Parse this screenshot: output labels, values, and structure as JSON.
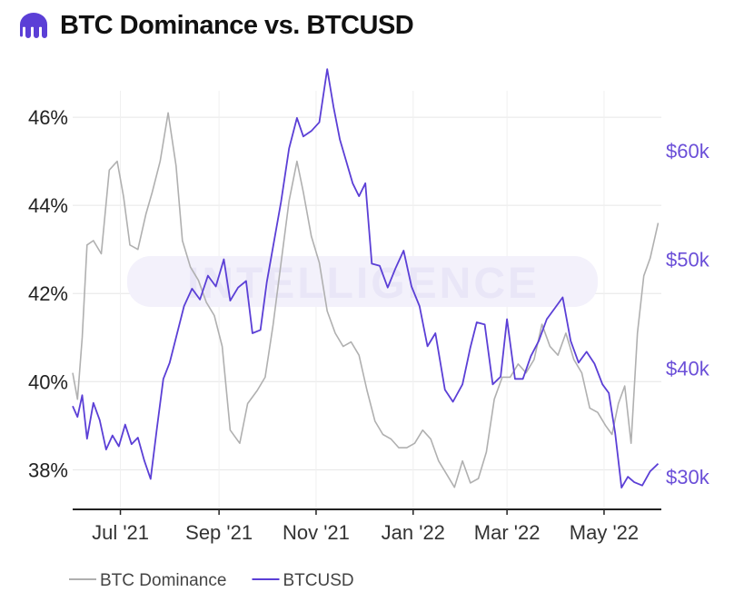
{
  "header": {
    "title": "BTC Dominance vs. BTCUSD",
    "logo_icon": "kraken-logo-icon",
    "accent": "#5b3fd6"
  },
  "watermark": "INTELLIGENCE",
  "chart_data": {
    "type": "line",
    "title": "BTC Dominance vs. BTCUSD",
    "x_tick_labels": [
      "Jul '21",
      "Sep '21",
      "Nov '21",
      "Jan '22",
      "Mar '22",
      "May '22"
    ],
    "x_tick_dates": [
      "2021-07-01",
      "2021-09-01",
      "2021-11-01",
      "2022-01-01",
      "2022-03-01",
      "2022-05-01"
    ],
    "x_range": [
      "2021-06-01",
      "2022-06-06"
    ],
    "y_left": {
      "ticks": [
        38,
        40,
        42,
        44,
        46
      ],
      "labels": [
        "38%",
        "40%",
        "42%",
        "44%",
        "46%"
      ],
      "range": [
        37.1,
        46.6
      ]
    },
    "y_right": {
      "ticks": [
        30000,
        40000,
        50000,
        60000
      ],
      "labels": [
        "$30k",
        "$40k",
        "$50k",
        "$60k"
      ],
      "range": [
        27000,
        65500
      ]
    },
    "grid": true,
    "legend_position": "bottom-left",
    "series": [
      {
        "name": "BTC Dominance",
        "axis": "left",
        "color": "#b0b0b0",
        "dates": [
          "2021-06-01",
          "2021-06-04",
          "2021-06-07",
          "2021-06-10",
          "2021-06-14",
          "2021-06-19",
          "2021-06-24",
          "2021-06-29",
          "2021-07-03",
          "2021-07-07",
          "2021-07-12",
          "2021-07-17",
          "2021-07-21",
          "2021-07-26",
          "2021-07-31",
          "2021-08-05",
          "2021-08-09",
          "2021-08-14",
          "2021-08-19",
          "2021-08-24",
          "2021-08-29",
          "2021-09-03",
          "2021-09-08",
          "2021-09-14",
          "2021-09-19",
          "2021-09-25",
          "2021-09-30",
          "2021-10-05",
          "2021-10-10",
          "2021-10-15",
          "2021-10-20",
          "2021-10-24",
          "2021-10-29",
          "2021-11-03",
          "2021-11-08",
          "2021-11-13",
          "2021-11-18",
          "2021-11-23",
          "2021-11-28",
          "2021-12-03",
          "2021-12-08",
          "2021-12-13",
          "2021-12-18",
          "2021-12-23",
          "2021-12-28",
          "2022-01-02",
          "2022-01-07",
          "2022-01-12",
          "2022-01-17",
          "2022-01-22",
          "2022-01-27",
          "2022-02-01",
          "2022-02-06",
          "2022-02-11",
          "2022-02-16",
          "2022-02-21",
          "2022-02-26",
          "2022-03-03",
          "2022-03-08",
          "2022-03-13",
          "2022-03-18",
          "2022-03-23",
          "2022-03-28",
          "2022-04-02",
          "2022-04-07",
          "2022-04-12",
          "2022-04-17",
          "2022-04-22",
          "2022-04-27",
          "2022-05-02",
          "2022-05-06",
          "2022-05-10",
          "2022-05-14",
          "2022-05-18",
          "2022-05-22",
          "2022-05-26",
          "2022-05-30",
          "2022-06-04"
        ],
        "values": [
          40.2,
          39.6,
          41.0,
          43.1,
          43.2,
          42.9,
          44.8,
          45.0,
          44.2,
          43.1,
          43.0,
          43.8,
          44.3,
          45.0,
          46.1,
          44.9,
          43.2,
          42.6,
          42.3,
          41.8,
          41.5,
          40.8,
          38.9,
          38.6,
          39.5,
          39.8,
          40.1,
          41.3,
          42.7,
          44.1,
          45.0,
          44.3,
          43.3,
          42.7,
          41.6,
          41.1,
          40.8,
          40.9,
          40.6,
          39.8,
          39.1,
          38.8,
          38.7,
          38.5,
          38.5,
          38.6,
          38.9,
          38.7,
          38.2,
          37.9,
          37.6,
          38.2,
          37.7,
          37.8,
          38.4,
          39.6,
          40.1,
          40.1,
          40.4,
          40.2,
          40.5,
          41.3,
          40.8,
          40.6,
          41.1,
          40.5,
          40.2,
          39.4,
          39.3,
          39.0,
          38.8,
          39.5,
          39.9,
          38.6,
          41.1,
          42.4,
          42.8,
          43.6
        ]
      },
      {
        "name": "BTCUSD",
        "axis": "right",
        "color": "#5b3fd6",
        "dates": [
          "2021-06-01",
          "2021-06-04",
          "2021-06-07",
          "2021-06-10",
          "2021-06-14",
          "2021-06-18",
          "2021-06-22",
          "2021-06-26",
          "2021-06-30",
          "2021-07-04",
          "2021-07-08",
          "2021-07-12",
          "2021-07-16",
          "2021-07-20",
          "2021-07-24",
          "2021-07-28",
          "2021-08-01",
          "2021-08-05",
          "2021-08-10",
          "2021-08-15",
          "2021-08-20",
          "2021-08-25",
          "2021-08-30",
          "2021-09-04",
          "2021-09-08",
          "2021-09-13",
          "2021-09-18",
          "2021-09-22",
          "2021-09-27",
          "2021-10-01",
          "2021-10-05",
          "2021-10-10",
          "2021-10-15",
          "2021-10-20",
          "2021-10-24",
          "2021-10-29",
          "2021-11-03",
          "2021-11-08",
          "2021-11-12",
          "2021-11-16",
          "2021-11-20",
          "2021-11-24",
          "2021-11-28",
          "2021-12-02",
          "2021-12-06",
          "2021-12-11",
          "2021-12-16",
          "2021-12-21",
          "2021-12-26",
          "2021-12-31",
          "2022-01-05",
          "2022-01-10",
          "2022-01-15",
          "2022-01-21",
          "2022-01-26",
          "2022-02-01",
          "2022-02-06",
          "2022-02-10",
          "2022-02-15",
          "2022-02-20",
          "2022-02-25",
          "2022-03-01",
          "2022-03-06",
          "2022-03-11",
          "2022-03-16",
          "2022-03-21",
          "2022-03-26",
          "2022-03-31",
          "2022-04-05",
          "2022-04-10",
          "2022-04-15",
          "2022-04-20",
          "2022-04-25",
          "2022-04-30",
          "2022-05-04",
          "2022-05-08",
          "2022-05-12",
          "2022-05-16",
          "2022-05-20",
          "2022-05-25",
          "2022-05-30",
          "2022-06-04"
        ],
        "values": [
          36500,
          35500,
          37500,
          33500,
          36800,
          35200,
          32500,
          33800,
          32800,
          34800,
          33000,
          33600,
          31500,
          29800,
          34500,
          39000,
          40500,
          42800,
          45700,
          47300,
          46300,
          48500,
          47500,
          50000,
          46200,
          47400,
          48000,
          43200,
          43500,
          47900,
          51200,
          55300,
          60200,
          63000,
          61300,
          61800,
          62600,
          67500,
          64000,
          61000,
          59000,
          57000,
          55800,
          57000,
          49600,
          49400,
          47400,
          49200,
          50800,
          47500,
          45700,
          42000,
          43200,
          38000,
          36900,
          38500,
          41900,
          44200,
          44000,
          38500,
          39200,
          44500,
          39000,
          39000,
          41100,
          42500,
          44500,
          45500,
          46500,
          42500,
          40500,
          41500,
          40400,
          38500,
          37700,
          34000,
          29000,
          30000,
          29500,
          29200,
          30500,
          31200
        ]
      }
    ]
  }
}
